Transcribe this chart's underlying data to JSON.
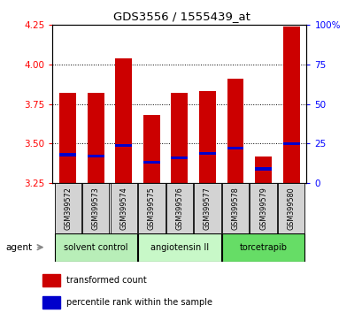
{
  "title": "GDS3556 / 1555439_at",
  "samples": [
    "GSM399572",
    "GSM399573",
    "GSM399574",
    "GSM399575",
    "GSM399576",
    "GSM399577",
    "GSM399578",
    "GSM399579",
    "GSM399580"
  ],
  "red_values": [
    3.82,
    3.82,
    4.04,
    3.68,
    3.82,
    3.83,
    3.91,
    3.42,
    4.24
  ],
  "blue_values": [
    3.43,
    3.42,
    3.49,
    3.38,
    3.41,
    3.44,
    3.47,
    3.34,
    3.5
  ],
  "ylim_left": [
    3.25,
    4.25
  ],
  "ylim_right": [
    0,
    100
  ],
  "yticks_left": [
    3.25,
    3.5,
    3.75,
    4.0,
    4.25
  ],
  "yticks_right": [
    0,
    25,
    50,
    75,
    100
  ],
  "groups": [
    {
      "label": "solvent control",
      "indices": [
        0,
        1,
        2
      ],
      "color": "#b8eeb8"
    },
    {
      "label": "angiotensin II",
      "indices": [
        3,
        4,
        5
      ],
      "color": "#c8f8c8"
    },
    {
      "label": "torcetrapib",
      "indices": [
        6,
        7,
        8
      ],
      "color": "#66dd66"
    }
  ],
  "bar_width": 0.6,
  "bar_color_red": "#cc0000",
  "bar_color_blue": "#0000cc",
  "bar_bottom": 3.25,
  "legend_red": "transformed count",
  "legend_blue": "percentile rank within the sample",
  "agent_label": "agent"
}
